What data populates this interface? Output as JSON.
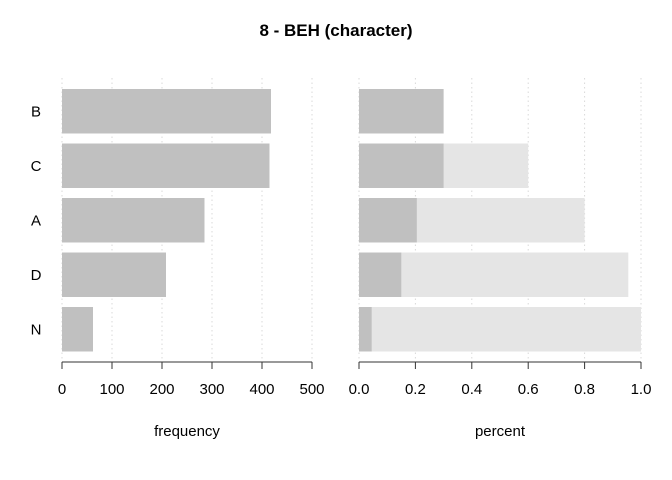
{
  "chart_data": {
    "title": "8 - BEH (character)",
    "categories": [
      "B",
      "C",
      "A",
      "D",
      "N"
    ],
    "panels": [
      {
        "type": "bar",
        "orientation": "horizontal",
        "xlabel": "frequency",
        "xlim": [
          0,
          500
        ],
        "xticks": [
          0,
          100,
          200,
          300,
          400,
          500
        ],
        "xtick_labels": [
          "0",
          "100",
          "200",
          "300",
          "400",
          "500"
        ],
        "grid": "vertical dotted",
        "series": [
          {
            "values": [
              418,
              415,
              285,
              208,
              62
            ],
            "color": "#c0c0c0"
          }
        ]
      },
      {
        "type": "bar",
        "orientation": "horizontal",
        "stacked": true,
        "xlabel": "percent",
        "xlim": [
          0,
          1
        ],
        "xticks": [
          0,
          0.2,
          0.4,
          0.6,
          0.8,
          1.0
        ],
        "xtick_labels": [
          "0.0",
          "0.2",
          "0.4",
          "0.6",
          "0.8",
          "1.0"
        ],
        "grid": "vertical dotted",
        "series": [
          {
            "values": [
              0.3,
              0.3,
              0.205,
              0.15,
              0.045
            ],
            "color": "#c0c0c0"
          },
          {
            "cumulative": [
              0.3,
              0.6,
              0.8,
              0.955,
              1.0
            ],
            "color": "#e5e5e5"
          }
        ]
      }
    ]
  }
}
